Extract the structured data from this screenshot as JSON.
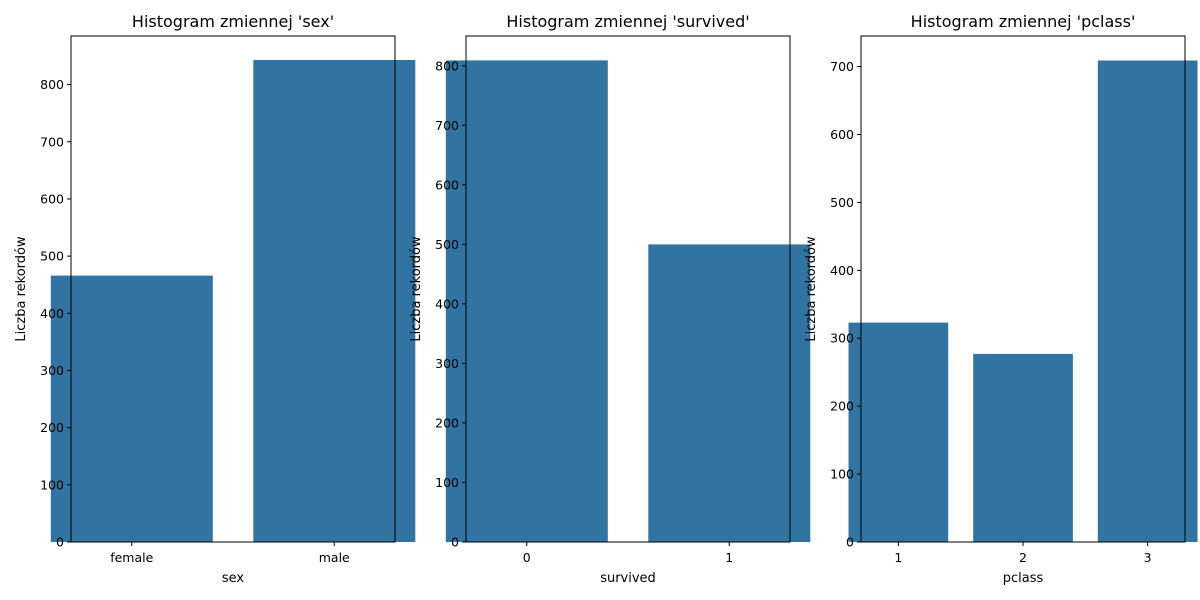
{
  "bar_color": "#3274a1",
  "chart_data": [
    {
      "type": "bar",
      "title": "Histogram zmiennej 'sex'",
      "xlabel": "sex",
      "ylabel": "Liczba rekordów",
      "categories": [
        "female",
        "male"
      ],
      "values": [
        466,
        843
      ],
      "ylim": [
        0,
        885
      ],
      "yticks": [
        0,
        100,
        200,
        300,
        400,
        500,
        600,
        700,
        800
      ]
    },
    {
      "type": "bar",
      "title": "Histogram zmiennej 'survived'",
      "xlabel": "survived",
      "ylabel": "Liczba rekordów",
      "categories": [
        "0",
        "1"
      ],
      "values": [
        809,
        500
      ],
      "ylim": [
        0,
        850
      ],
      "yticks": [
        0,
        100,
        200,
        300,
        400,
        500,
        600,
        700,
        800
      ]
    },
    {
      "type": "bar",
      "title": "Histogram zmiennej 'pclass'",
      "xlabel": "pclass",
      "ylabel": "Liczba rekordów",
      "categories": [
        "1",
        "2",
        "3"
      ],
      "values": [
        323,
        277,
        709
      ],
      "ylim": [
        0,
        745
      ],
      "yticks": [
        0,
        100,
        200,
        300,
        400,
        500,
        600,
        700
      ]
    }
  ]
}
